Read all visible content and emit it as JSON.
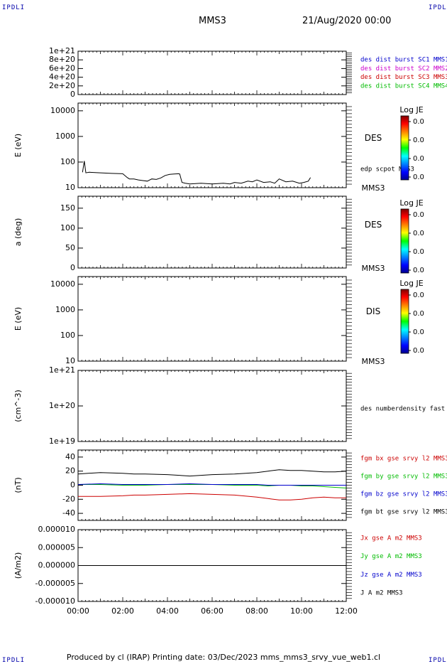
{
  "corners": {
    "left": "IPDLI",
    "right": "IPDLI"
  },
  "header": {
    "spacecraft": "MMS3",
    "date": "21/Aug/2020 00:00"
  },
  "footer": {
    "text": "Produced by cl (IRAP)   Printing date: 03/Dec/2023   mms_mms3_srvy_vue_web1.cl"
  },
  "x_axis": {
    "ticks": [
      "00:00",
      "02:00",
      "04:00",
      "06:00",
      "08:00",
      "10:00",
      "12:00"
    ],
    "range_hours": [
      0,
      12
    ]
  },
  "colors": {
    "blue": "#0000cc",
    "magenta": "#cc00cc",
    "red": "#cc0000",
    "green": "#00bb00",
    "black": "#000000"
  },
  "chart_data": [
    {
      "type": "line",
      "title": "",
      "ylabel": "",
      "ylim": [
        0,
        1e+21
      ],
      "yticks": [
        "0",
        "2e+20",
        "4e+20",
        "6e+20",
        "8e+20",
        "1e+21"
      ],
      "legend": [
        {
          "name": "des dist burst SC1 MMS1",
          "color": "#0000cc"
        },
        {
          "name": "des dist burst SC2 MMS2",
          "color": "#cc00cc"
        },
        {
          "name": "des dist burst SC3 MMS3",
          "color": "#cc0000"
        },
        {
          "name": "des dist burst SC4 MMS4",
          "color": "#00bb00"
        }
      ],
      "series": [
        {
          "name": "",
          "style": "dashed",
          "x": [
            0,
            12
          ],
          "y": [
            0,
            0
          ]
        }
      ]
    },
    {
      "type": "line",
      "ylabel": "E (eV)",
      "scale": "log",
      "ylim": [
        10,
        20000
      ],
      "yticks": [
        "10",
        "100",
        "1000",
        "10000"
      ],
      "instrument": "DES",
      "spacecraft_label": "MMS3",
      "overlay_label": "edp scpot MMS3",
      "colorbar": {
        "title": "Log JE",
        "ticks": [
          "0.0",
          "0.0",
          "0.0",
          "0.0"
        ]
      },
      "series": [
        {
          "name": "edp scpot MMS3",
          "x": [
            0.2,
            0.28,
            0.35,
            0.5,
            1.0,
            1.5,
            2.0,
            2.2,
            2.3,
            2.5,
            2.7,
            2.9,
            3.1,
            3.3,
            3.5,
            3.7,
            3.9,
            4.1,
            4.3,
            4.5,
            4.55,
            4.65,
            4.8,
            5.0,
            5.5,
            6.0,
            6.5,
            6.8,
            7.0,
            7.3,
            7.6,
            7.8,
            8.0,
            8.3,
            8.6,
            8.8,
            9.0,
            9.3,
            9.6,
            9.9,
            10.1,
            10.3,
            10.4
          ],
          "y": [
            40,
            110,
            38,
            40,
            38,
            36,
            35,
            25,
            22,
            22,
            20,
            19,
            18,
            22,
            21,
            24,
            30,
            33,
            34,
            35,
            34,
            16,
            15,
            14,
            15,
            14,
            15,
            14,
            16,
            15,
            18,
            17,
            20,
            16,
            17,
            15,
            22,
            17,
            18,
            15,
            16,
            18,
            25
          ]
        }
      ]
    },
    {
      "type": "heatmap",
      "ylabel": "a (deg)",
      "ylim": [
        0,
        180
      ],
      "yticks": [
        "0",
        "50",
        "100",
        "150"
      ],
      "instrument": "DES",
      "spacecraft_label": "MMS3",
      "colorbar": {
        "title": "Log JE",
        "ticks": [
          "0.0",
          "0.0",
          "0.0",
          "0.0"
        ]
      }
    },
    {
      "type": "heatmap",
      "ylabel": "E (eV)",
      "scale": "log",
      "ylim": [
        10,
        20000
      ],
      "yticks": [
        "10",
        "100",
        "1000",
        "10000"
      ],
      "instrument": "DIS",
      "spacecraft_label": "MMS3",
      "colorbar": {
        "title": "Log JE",
        "ticks": [
          "0.0",
          "0.0",
          "0.0",
          "0.0"
        ]
      }
    },
    {
      "type": "line",
      "ylabel": "(cm^-3)",
      "scale": "log",
      "ylim": [
        1e+19,
        1e+21
      ],
      "yticks": [
        "1e+19",
        "1e+20",
        "1e+21"
      ],
      "legend": [
        {
          "name": "des numberdensity fast M",
          "color": "#000000"
        }
      ]
    },
    {
      "type": "line",
      "ylabel": "(nT)",
      "ylim": [
        -50,
        50
      ],
      "yticks": [
        "-40",
        "-20",
        "0",
        "20",
        "40"
      ],
      "legend": [
        {
          "name": "fgm bx gse srvy l2 MMS3",
          "color": "#cc0000"
        },
        {
          "name": "fgm by gse srvy l2 MMS3",
          "color": "#00bb00"
        },
        {
          "name": "fgm bz gse srvy l2 MMS3",
          "color": "#0000cc"
        },
        {
          "name": "fgm bt gse srvy l2 MMS3",
          "color": "#000000"
        }
      ],
      "x": [
        0,
        1,
        2,
        2.5,
        3,
        4,
        5,
        6,
        7,
        8,
        8.5,
        9,
        9.5,
        10,
        10.5,
        11,
        11.5,
        12
      ],
      "series": [
        {
          "name": "fgm bt gse srvy l2 MMS3",
          "color": "#000000",
          "y": [
            16,
            18,
            17,
            16,
            16,
            15,
            13,
            15,
            16,
            18,
            20,
            22,
            21,
            21,
            20,
            19,
            19,
            20
          ]
        },
        {
          "name": "fgm bx gse srvy l2 MMS3",
          "color": "#cc0000",
          "y": [
            -16,
            -16,
            -15,
            -14,
            -14,
            -13,
            -12,
            -13,
            -14,
            -17,
            -19,
            -21,
            -21,
            -20,
            -18,
            -17,
            -18,
            -18
          ]
        },
        {
          "name": "fgm by gse srvy l2 MMS3",
          "color": "#00bb00",
          "y": [
            1,
            1,
            0,
            0,
            0,
            1,
            1,
            1,
            0,
            0,
            -1,
            0,
            0,
            -1,
            -1,
            -2,
            -3,
            -4
          ]
        },
        {
          "name": "fgm bz gse srvy l2 MMS3",
          "color": "#0000cc",
          "y": [
            1,
            2,
            1,
            1,
            1,
            1,
            2,
            1,
            1,
            1,
            0,
            0,
            0,
            0,
            0,
            0,
            0,
            0
          ]
        }
      ]
    },
    {
      "type": "line",
      "ylabel": "(A/m2)",
      "ylim": [
        -1e-05,
        1e-05
      ],
      "yticks": [
        "-0.000010",
        "-0.000005",
        "0.000000",
        "0.000005",
        "0.000010"
      ],
      "legend": [
        {
          "name": "Jx gse A m2 MMS3",
          "color": "#cc0000"
        },
        {
          "name": "Jy gse A m2 MMS3",
          "color": "#00bb00"
        },
        {
          "name": "Jz gse A m2 MMS3",
          "color": "#0000cc"
        },
        {
          "name": "J A m2 MMS3",
          "color": "#000000"
        }
      ],
      "series": [
        {
          "name": "J A m2 MMS3",
          "color": "#000000",
          "x": [
            0,
            12
          ],
          "y": [
            0,
            0
          ]
        }
      ]
    }
  ]
}
